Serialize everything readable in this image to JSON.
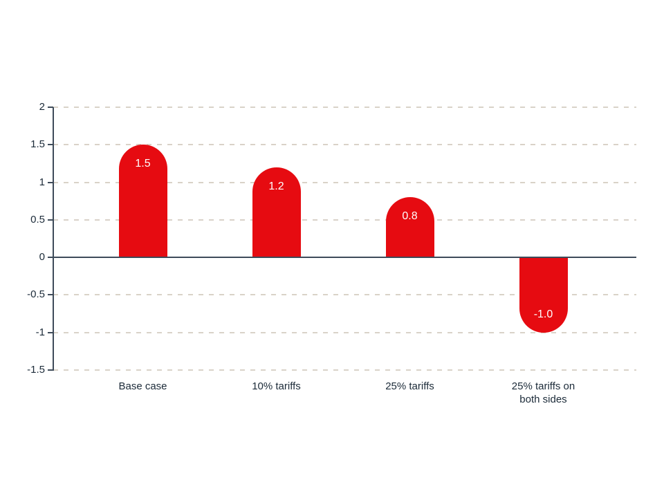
{
  "chart_data": {
    "type": "bar",
    "categories": [
      "Base case",
      "10% tariffs",
      "25% tariffs",
      "25% tariffs on\nboth sides"
    ],
    "values": [
      1.5,
      1.2,
      0.8,
      -1.0
    ],
    "value_labels": [
      "1.5",
      "1.2",
      "0.8",
      "-1.0"
    ],
    "title": "",
    "xlabel": "",
    "ylabel": "",
    "ylim": [
      -1.5,
      2
    ],
    "yticks": [
      2,
      1.5,
      1,
      0.5,
      0,
      -0.5,
      -1,
      -1.5
    ],
    "ytick_labels": [
      "2",
      "1.5",
      "1",
      "0.5",
      "0",
      "-0.5",
      "-1",
      "-1.5"
    ],
    "grid": "horizontal-dashed",
    "legend_position": "none",
    "bar_style": "rounded-end-caps",
    "colors": {
      "bar": "#e60b11",
      "bar_value_text": "#ffffff",
      "axis_and_zero_line": "#3d4a59",
      "tick_text": "#1b2a38",
      "gridline": "#d9d2c8",
      "background": "#ffffff"
    }
  }
}
